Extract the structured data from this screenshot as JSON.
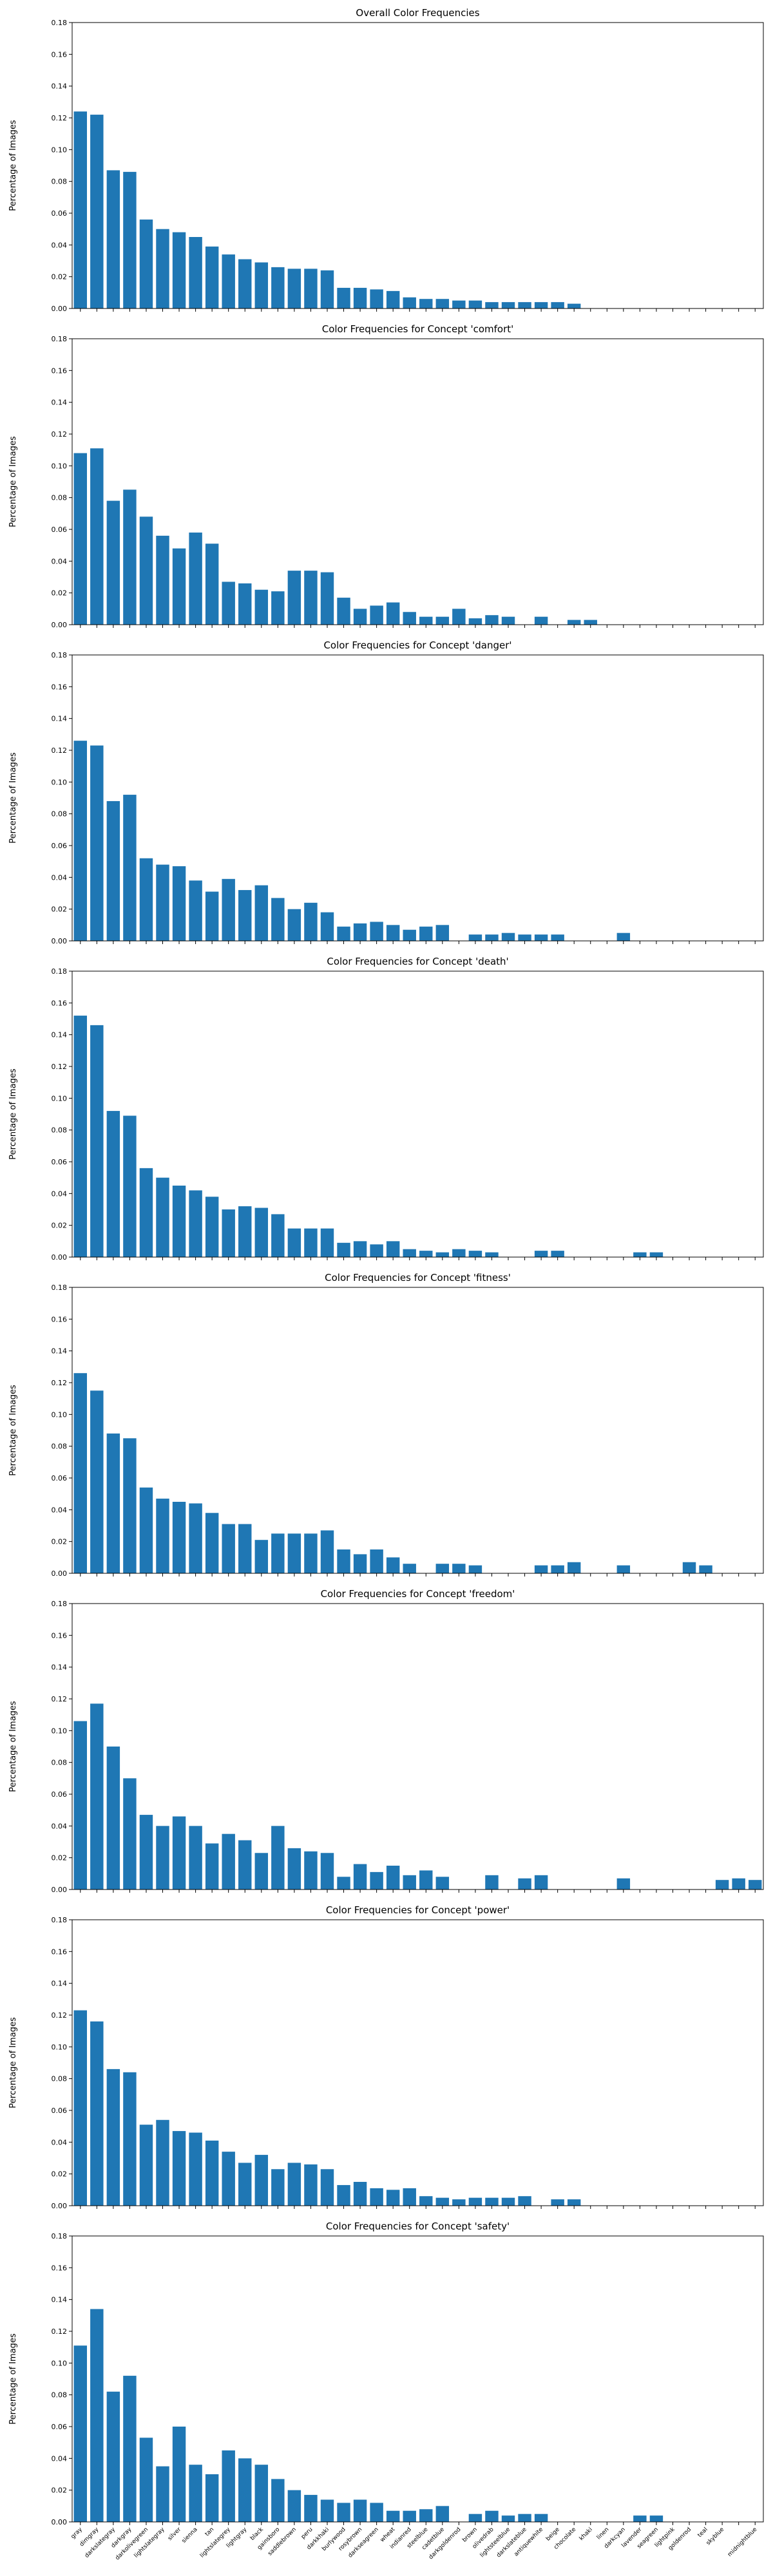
{
  "chart_data": {
    "type": "bar",
    "ylabel": "Percentage of Images",
    "ylim": [
      0,
      0.18
    ],
    "yticks": [
      "0.00",
      "0.02",
      "0.04",
      "0.06",
      "0.08",
      "0.10",
      "0.12",
      "0.14",
      "0.16",
      "0.18"
    ],
    "bar_color": "#1f77b4",
    "grid": false,
    "categories": [
      "gray",
      "dimgray",
      "darkslategray",
      "darkgray",
      "darkolivegreen",
      "lightslategray",
      "silver",
      "sienna",
      "tan",
      "lightslategrey",
      "lightgray",
      "black",
      "gainsboro",
      "saddlebrown",
      "peru",
      "darkkhaki",
      "burlywood",
      "rosybrown",
      "darkseagreen",
      "wheat",
      "indianred",
      "steelblue",
      "cadetblue",
      "darkgoldenrod",
      "brown",
      "olivedrab",
      "lightsteelblue",
      "darkslateblue",
      "antiquewhite",
      "beige",
      "chocolate",
      "khaki",
      "linen",
      "darkcyan",
      "lavender",
      "seagreen",
      "lightpink",
      "goldenrod",
      "teal",
      "skyblue",
      "mediumpurple",
      "midnightblue"
    ],
    "xtick_labels": [
      "gray",
      "dimgray",
      "darkslategray",
      "darkgray",
      "darkolivegreen",
      "lightslategray",
      "silver",
      "sienna",
      "tan",
      "lightslategrey",
      "lightgray",
      "black",
      "gainsboro",
      "saddlebrown",
      "peru",
      "darkkhaki",
      "burlywood",
      "rosybrown",
      "darkseagreen",
      "wheat",
      "indianred",
      "steelblue",
      "cadetblue",
      "darkgoldenrod",
      "brown",
      "olivedrab",
      "lightsteelblue",
      "darkslateblue",
      "antiquewhite",
      "beige",
      "chocolate",
      "khaki",
      "linen",
      "darkcyan",
      "lavender",
      "seagreen",
      "lightpink",
      "goldenrod",
      "teal",
      "skyblue",
      "",
      "midnightblue"
    ],
    "panels": [
      {
        "title": "Overall Color Frequencies",
        "values": [
          0.124,
          0.122,
          0.087,
          0.086,
          0.056,
          0.05,
          0.048,
          0.045,
          0.039,
          0.034,
          0.031,
          0.029,
          0.026,
          0.025,
          0.025,
          0.024,
          0.013,
          0.013,
          0.012,
          0.011,
          0.007,
          0.006,
          0.006,
          0.005,
          0.005,
          0.004,
          0.004,
          0.004,
          0.004,
          0.004,
          0.003,
          0,
          0,
          0,
          0,
          0,
          0,
          0,
          0,
          0,
          0,
          0
        ]
      },
      {
        "title": "Color Frequencies for Concept 'comfort'",
        "values": [
          0.108,
          0.111,
          0.078,
          0.085,
          0.068,
          0.056,
          0.048,
          0.058,
          0.051,
          0.027,
          0.026,
          0.022,
          0.021,
          0.034,
          0.034,
          0.033,
          0.017,
          0.01,
          0.012,
          0.014,
          0.008,
          0.005,
          0.005,
          0.01,
          0.004,
          0.006,
          0.005,
          0,
          0.005,
          0,
          0.003,
          0.003,
          0,
          0,
          0,
          0,
          0,
          0,
          0,
          0,
          0,
          0
        ]
      },
      {
        "title": "Color Frequencies for Concept 'danger'",
        "values": [
          0.126,
          0.123,
          0.088,
          0.092,
          0.052,
          0.048,
          0.047,
          0.038,
          0.031,
          0.039,
          0.032,
          0.035,
          0.027,
          0.02,
          0.024,
          0.018,
          0.009,
          0.011,
          0.012,
          0.01,
          0.007,
          0.009,
          0.01,
          0,
          0.004,
          0.004,
          0.005,
          0.004,
          0.004,
          0.004,
          0,
          0,
          0,
          0.005,
          0,
          0,
          0,
          0,
          0,
          0,
          0,
          0
        ]
      },
      {
        "title": "Color Frequencies for Concept 'death'",
        "values": [
          0.152,
          0.146,
          0.092,
          0.089,
          0.056,
          0.05,
          0.045,
          0.042,
          0.038,
          0.03,
          0.032,
          0.031,
          0.027,
          0.018,
          0.018,
          0.018,
          0.009,
          0.01,
          0.008,
          0.01,
          0.005,
          0.004,
          0.003,
          0.005,
          0.004,
          0.003,
          0,
          0,
          0.004,
          0.004,
          0,
          0,
          0,
          0,
          0.003,
          0.003,
          0,
          0,
          0,
          0,
          0,
          0
        ]
      },
      {
        "title": "Color Frequencies for Concept 'fitness'",
        "values": [
          0.126,
          0.115,
          0.088,
          0.085,
          0.054,
          0.047,
          0.045,
          0.044,
          0.038,
          0.031,
          0.031,
          0.021,
          0.025,
          0.025,
          0.025,
          0.027,
          0.015,
          0.012,
          0.015,
          0.01,
          0.006,
          0,
          0.006,
          0.006,
          0.005,
          0,
          0,
          0,
          0.005,
          0.005,
          0.007,
          0,
          0,
          0.005,
          0,
          0,
          0,
          0.007,
          0.005,
          0,
          0,
          0
        ]
      },
      {
        "title": "Color Frequencies for Concept 'freedom'",
        "values": [
          0.106,
          0.117,
          0.09,
          0.07,
          0.047,
          0.04,
          0.046,
          0.04,
          0.029,
          0.035,
          0.031,
          0.023,
          0.04,
          0.026,
          0.024,
          0.023,
          0.008,
          0.016,
          0.011,
          0.015,
          0.009,
          0.012,
          0.008,
          0,
          0,
          0.009,
          0,
          0.007,
          0.009,
          0,
          0,
          0,
          0,
          0.007,
          0,
          0,
          0,
          0,
          0,
          0.006,
          0.007,
          0.006
        ]
      },
      {
        "title": "Color Frequencies for Concept 'power'",
        "values": [
          0.123,
          0.116,
          0.086,
          0.084,
          0.051,
          0.054,
          0.047,
          0.046,
          0.041,
          0.034,
          0.027,
          0.032,
          0.023,
          0.027,
          0.026,
          0.023,
          0.013,
          0.015,
          0.011,
          0.01,
          0.011,
          0.006,
          0.005,
          0.004,
          0.005,
          0.005,
          0.005,
          0.006,
          0,
          0.004,
          0.004,
          0,
          0,
          0,
          0,
          0,
          0,
          0,
          0,
          0,
          0,
          0
        ]
      },
      {
        "title": "Color Frequencies for Concept 'safety'",
        "values": [
          0.111,
          0.134,
          0.082,
          0.092,
          0.053,
          0.035,
          0.06,
          0.036,
          0.03,
          0.045,
          0.04,
          0.036,
          0.027,
          0.02,
          0.017,
          0.014,
          0.012,
          0.014,
          0.012,
          0.007,
          0.007,
          0.008,
          0.01,
          0,
          0.005,
          0.007,
          0.004,
          0.005,
          0.005,
          0,
          0,
          0,
          0,
          0,
          0.004,
          0.004,
          0,
          0,
          0,
          0,
          0,
          0
        ]
      }
    ]
  }
}
